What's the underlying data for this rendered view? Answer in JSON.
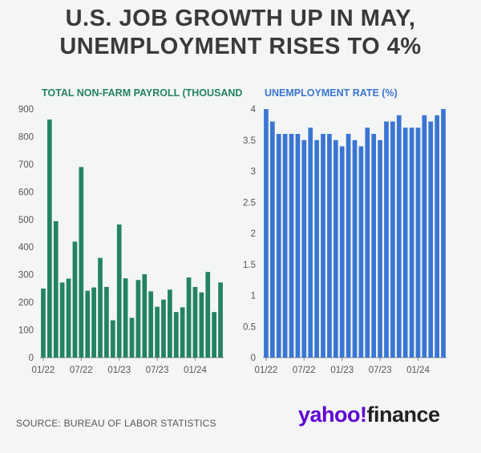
{
  "title_line1": "U.S. JOB GROWTH UP IN MAY,",
  "title_line2": "UNEMPLOYMENT RISES TO 4%",
  "source": "SOURCE: BUREAU OF LABOR STATISTICS",
  "logo": {
    "part1": "yahoo",
    "mark": "!",
    "part2": "finance"
  },
  "colors": {
    "payroll": "#238363",
    "unemployment": "#3a75d3",
    "title_text": "#3a3a3a",
    "axis": "#666666"
  },
  "chart_data": [
    {
      "type": "bar",
      "title": "TOTAL NON-FARM PAYROLL (THOUSANDS)",
      "ylim": [
        0,
        900
      ],
      "yticks": [
        "0",
        "100",
        "200",
        "300",
        "400",
        "500",
        "600",
        "700",
        "800",
        "900"
      ],
      "xtick_labels": [
        "01/22",
        "07/22",
        "01/23",
        "07/23",
        "01/24"
      ],
      "xtick_index": [
        0,
        6,
        12,
        18,
        24
      ],
      "values": [
        250,
        862,
        494,
        272,
        286,
        420,
        690,
        242,
        254,
        361,
        256,
        135,
        482,
        287,
        144,
        281,
        302,
        240,
        184,
        210,
        246,
        165,
        182,
        290,
        256,
        236,
        310,
        165,
        272
      ]
    },
    {
      "type": "bar",
      "title": "UNEMPLOYMENT RATE (%)",
      "ylim": [
        0,
        4
      ],
      "yticks": [
        "0",
        "0.5",
        "1",
        "1.5",
        "2",
        "2.5",
        "3",
        "3.5",
        "4"
      ],
      "xtick_labels": [
        "01/22",
        "07/22",
        "01/23",
        "07/23",
        "01/24"
      ],
      "xtick_index": [
        0,
        6,
        12,
        18,
        24
      ],
      "values": [
        4.0,
        3.8,
        3.6,
        3.6,
        3.6,
        3.6,
        3.5,
        3.7,
        3.5,
        3.6,
        3.6,
        3.5,
        3.4,
        3.6,
        3.5,
        3.4,
        3.7,
        3.6,
        3.5,
        3.8,
        3.8,
        3.9,
        3.7,
        3.7,
        3.7,
        3.9,
        3.8,
        3.9,
        4.0
      ]
    }
  ]
}
